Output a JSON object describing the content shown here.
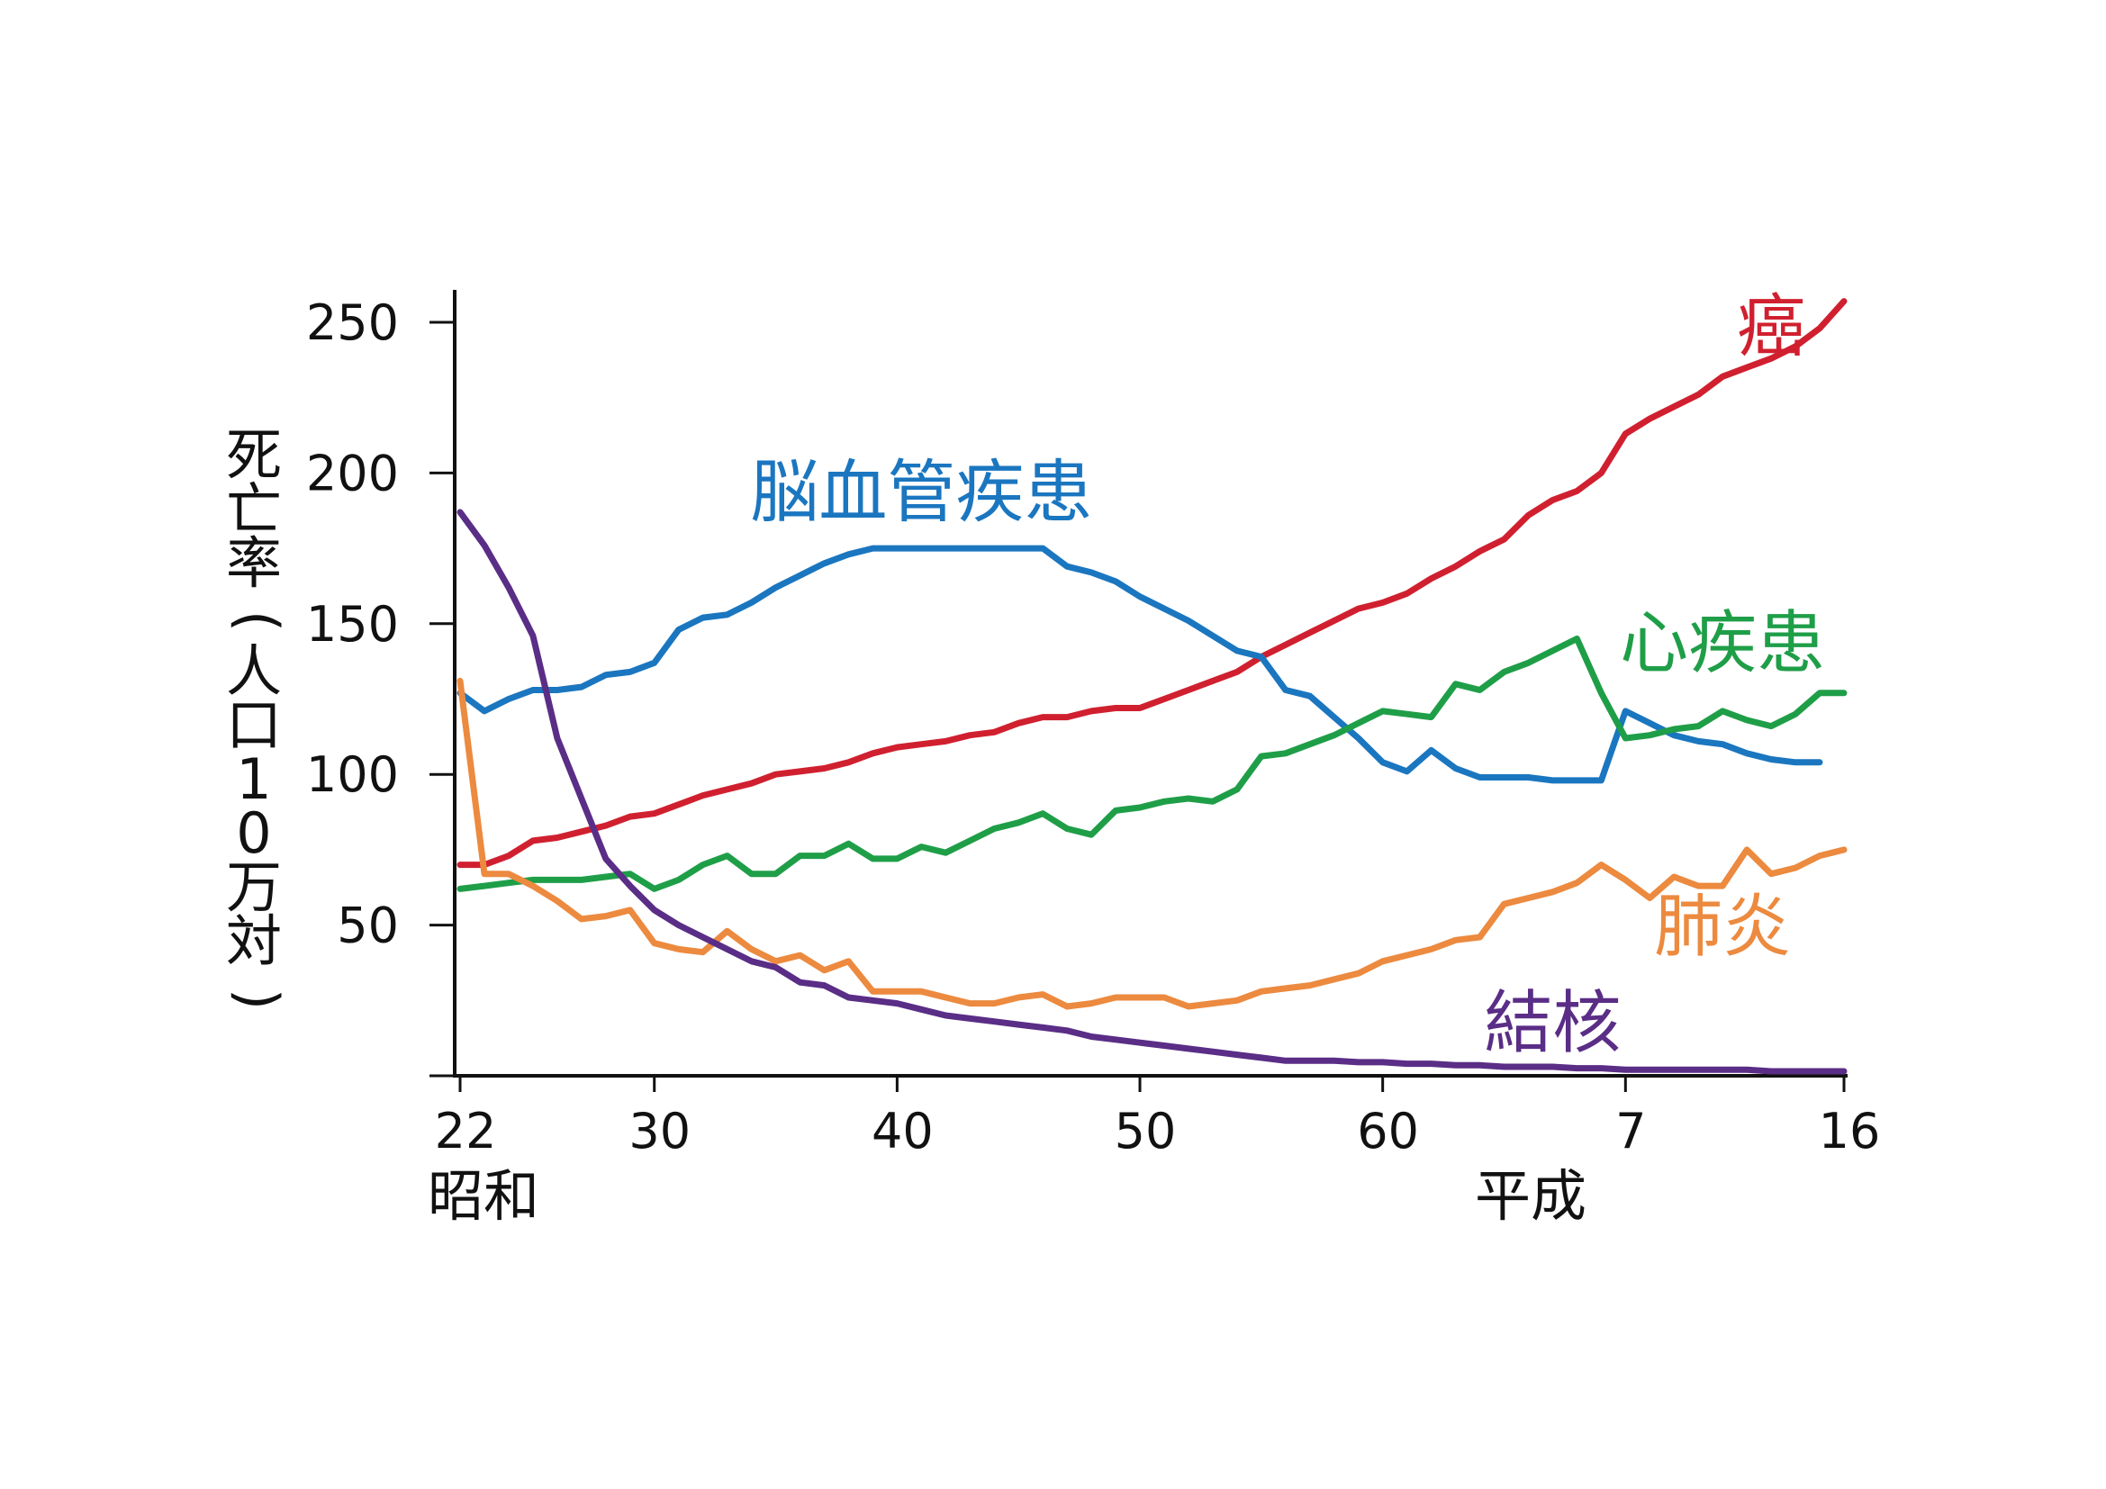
{
  "chart_data": {
    "type": "line",
    "ylabel": "死亡率（人口10万対）",
    "ylim": [
      0,
      260
    ],
    "yticks": [
      50,
      100,
      150,
      200,
      250
    ],
    "xlim": [
      1947,
      2004
    ],
    "xticks": [
      {
        "x": 1947,
        "label": "22"
      },
      {
        "x": 1955,
        "label": "30"
      },
      {
        "x": 1965,
        "label": "40"
      },
      {
        "x": 1975,
        "label": "50"
      },
      {
        "x": 1985,
        "label": "60"
      },
      {
        "x": 1995,
        "label": "7"
      },
      {
        "x": 2004,
        "label": "16"
      }
    ],
    "era_labels": [
      {
        "x": 1947,
        "label": "昭和"
      },
      {
        "x": 1990,
        "label": "平成"
      }
    ],
    "series": [
      {
        "name": "癌",
        "color": "#d0202f",
        "points": [
          [
            1947,
            70
          ],
          [
            1948,
            70
          ],
          [
            1949,
            73
          ],
          [
            1950,
            78
          ],
          [
            1951,
            79
          ],
          [
            1952,
            81
          ],
          [
            1953,
            83
          ],
          [
            1954,
            86
          ],
          [
            1955,
            87
          ],
          [
            1956,
            90
          ],
          [
            1957,
            93
          ],
          [
            1958,
            95
          ],
          [
            1959,
            97
          ],
          [
            1960,
            100
          ],
          [
            1961,
            101
          ],
          [
            1962,
            102
          ],
          [
            1963,
            104
          ],
          [
            1964,
            107
          ],
          [
            1965,
            109
          ],
          [
            1966,
            110
          ],
          [
            1967,
            111
          ],
          [
            1968,
            113
          ],
          [
            1969,
            114
          ],
          [
            1970,
            117
          ],
          [
            1971,
            119
          ],
          [
            1972,
            119
          ],
          [
            1973,
            121
          ],
          [
            1974,
            122
          ],
          [
            1975,
            122
          ],
          [
            1976,
            125
          ],
          [
            1977,
            128
          ],
          [
            1978,
            131
          ],
          [
            1979,
            134
          ],
          [
            1980,
            139
          ],
          [
            1981,
            143
          ],
          [
            1982,
            147
          ],
          [
            1983,
            151
          ],
          [
            1984,
            155
          ],
          [
            1985,
            157
          ],
          [
            1986,
            160
          ],
          [
            1987,
            165
          ],
          [
            1988,
            169
          ],
          [
            1989,
            174
          ],
          [
            1990,
            178
          ],
          [
            1991,
            186
          ],
          [
            1992,
            191
          ],
          [
            1993,
            194
          ],
          [
            1994,
            200
          ],
          [
            1995,
            213
          ],
          [
            1996,
            218
          ],
          [
            1997,
            222
          ],
          [
            1998,
            226
          ],
          [
            1999,
            232
          ],
          [
            2000,
            235
          ],
          [
            2001,
            238
          ],
          [
            2002,
            242
          ],
          [
            2003,
            248
          ],
          [
            2004,
            257
          ]
        ],
        "label_pos": [
          2001,
          247
        ]
      },
      {
        "name": "脳血管疾患",
        "color": "#1b76c0",
        "points": [
          [
            1947,
            127
          ],
          [
            1948,
            121
          ],
          [
            1949,
            125
          ],
          [
            1950,
            128
          ],
          [
            1951,
            128
          ],
          [
            1952,
            129
          ],
          [
            1953,
            133
          ],
          [
            1954,
            134
          ],
          [
            1955,
            137
          ],
          [
            1956,
            148
          ],
          [
            1957,
            152
          ],
          [
            1958,
            153
          ],
          [
            1959,
            157
          ],
          [
            1960,
            162
          ],
          [
            1961,
            166
          ],
          [
            1962,
            170
          ],
          [
            1963,
            173
          ],
          [
            1964,
            175
          ],
          [
            1965,
            175
          ],
          [
            1966,
            175
          ],
          [
            1967,
            175
          ],
          [
            1968,
            175
          ],
          [
            1969,
            175
          ],
          [
            1970,
            175
          ],
          [
            1971,
            175
          ],
          [
            1972,
            169
          ],
          [
            1973,
            167
          ],
          [
            1974,
            164
          ],
          [
            1975,
            159
          ],
          [
            1976,
            155
          ],
          [
            1977,
            151
          ],
          [
            1978,
            146
          ],
          [
            1979,
            141
          ],
          [
            1980,
            139
          ],
          [
            1981,
            128
          ],
          [
            1982,
            126
          ],
          [
            1983,
            119
          ],
          [
            1984,
            112
          ],
          [
            1985,
            104
          ],
          [
            1986,
            101
          ],
          [
            1987,
            108
          ],
          [
            1988,
            102
          ],
          [
            1989,
            99
          ],
          [
            1990,
            99
          ],
          [
            1991,
            99
          ],
          [
            1992,
            98
          ],
          [
            1993,
            98
          ],
          [
            1994,
            98
          ],
          [
            1995,
            121
          ],
          [
            1996,
            117
          ],
          [
            1997,
            113
          ],
          [
            1998,
            111
          ],
          [
            1999,
            110
          ],
          [
            2000,
            107
          ],
          [
            2001,
            105
          ],
          [
            2002,
            104
          ],
          [
            2003,
            104
          ]
        ],
        "label_pos": [
          1966,
          192
        ]
      },
      {
        "name": "心疾患",
        "color": "#1f9e48",
        "points": [
          [
            1947,
            62
          ],
          [
            1948,
            63
          ],
          [
            1949,
            64
          ],
          [
            1950,
            65
          ],
          [
            1951,
            65
          ],
          [
            1952,
            65
          ],
          [
            1953,
            66
          ],
          [
            1954,
            67
          ],
          [
            1955,
            62
          ],
          [
            1956,
            65
          ],
          [
            1957,
            70
          ],
          [
            1958,
            73
          ],
          [
            1959,
            67
          ],
          [
            1960,
            67
          ],
          [
            1961,
            73
          ],
          [
            1962,
            73
          ],
          [
            1963,
            77
          ],
          [
            1964,
            72
          ],
          [
            1965,
            72
          ],
          [
            1966,
            76
          ],
          [
            1967,
            74
          ],
          [
            1968,
            78
          ],
          [
            1969,
            82
          ],
          [
            1970,
            84
          ],
          [
            1971,
            87
          ],
          [
            1972,
            82
          ],
          [
            1973,
            80
          ],
          [
            1974,
            88
          ],
          [
            1975,
            89
          ],
          [
            1976,
            91
          ],
          [
            1977,
            92
          ],
          [
            1978,
            91
          ],
          [
            1979,
            95
          ],
          [
            1980,
            106
          ],
          [
            1981,
            107
          ],
          [
            1982,
            110
          ],
          [
            1983,
            113
          ],
          [
            1984,
            117
          ],
          [
            1985,
            121
          ],
          [
            1986,
            120
          ],
          [
            1987,
            119
          ],
          [
            1988,
            130
          ],
          [
            1989,
            128
          ],
          [
            1990,
            134
          ],
          [
            1991,
            137
          ],
          [
            1992,
            141
          ],
          [
            1993,
            145
          ],
          [
            1994,
            127
          ],
          [
            1995,
            112
          ],
          [
            1996,
            113
          ],
          [
            1997,
            115
          ],
          [
            1998,
            116
          ],
          [
            1999,
            121
          ],
          [
            2000,
            118
          ],
          [
            2001,
            116
          ],
          [
            2002,
            120
          ],
          [
            2003,
            127
          ],
          [
            2004,
            127
          ]
        ],
        "label_pos": [
          1999,
          142
        ]
      },
      {
        "name": "肺炎",
        "color": "#ec8a3f",
        "points": [
          [
            1947,
            131
          ],
          [
            1948,
            67
          ],
          [
            1949,
            67
          ],
          [
            1950,
            63
          ],
          [
            1951,
            58
          ],
          [
            1952,
            52
          ],
          [
            1953,
            53
          ],
          [
            1954,
            55
          ],
          [
            1955,
            44
          ],
          [
            1956,
            42
          ],
          [
            1957,
            41
          ],
          [
            1958,
            48
          ],
          [
            1959,
            42
          ],
          [
            1960,
            38
          ],
          [
            1961,
            40
          ],
          [
            1962,
            35
          ],
          [
            1963,
            38
          ],
          [
            1964,
            28
          ],
          [
            1965,
            28
          ],
          [
            1966,
            28
          ],
          [
            1967,
            26
          ],
          [
            1968,
            24
          ],
          [
            1969,
            24
          ],
          [
            1970,
            26
          ],
          [
            1971,
            27
          ],
          [
            1972,
            23
          ],
          [
            1973,
            24
          ],
          [
            1974,
            26
          ],
          [
            1975,
            26
          ],
          [
            1976,
            26
          ],
          [
            1977,
            23
          ],
          [
            1978,
            24
          ],
          [
            1979,
            25
          ],
          [
            1980,
            28
          ],
          [
            1981,
            29
          ],
          [
            1982,
            30
          ],
          [
            1983,
            32
          ],
          [
            1984,
            34
          ],
          [
            1985,
            38
          ],
          [
            1986,
            40
          ],
          [
            1987,
            42
          ],
          [
            1988,
            45
          ],
          [
            1989,
            46
          ],
          [
            1990,
            57
          ],
          [
            1991,
            59
          ],
          [
            1992,
            61
          ],
          [
            1993,
            64
          ],
          [
            1994,
            70
          ],
          [
            1995,
            65
          ],
          [
            1996,
            59
          ],
          [
            1997,
            66
          ],
          [
            1998,
            63
          ],
          [
            1999,
            63
          ],
          [
            2000,
            75
          ],
          [
            2001,
            67
          ],
          [
            2002,
            69
          ],
          [
            2003,
            73
          ],
          [
            2004,
            75
          ]
        ],
        "label_pos": [
          1999,
          48
        ]
      },
      {
        "name": "結核",
        "color": "#5a2d86",
        "points": [
          [
            1947,
            187
          ],
          [
            1948,
            176
          ],
          [
            1949,
            162
          ],
          [
            1950,
            146
          ],
          [
            1951,
            112
          ],
          [
            1952,
            92
          ],
          [
            1953,
            72
          ],
          [
            1954,
            63
          ],
          [
            1955,
            55
          ],
          [
            1956,
            50
          ],
          [
            1957,
            46
          ],
          [
            1958,
            42
          ],
          [
            1959,
            38
          ],
          [
            1960,
            36
          ],
          [
            1961,
            31
          ],
          [
            1962,
            30
          ],
          [
            1963,
            26
          ],
          [
            1964,
            25
          ],
          [
            1965,
            24
          ],
          [
            1966,
            22
          ],
          [
            1967,
            20
          ],
          [
            1968,
            19
          ],
          [
            1969,
            18
          ],
          [
            1970,
            17
          ],
          [
            1971,
            16
          ],
          [
            1972,
            15
          ],
          [
            1973,
            13
          ],
          [
            1974,
            12
          ],
          [
            1975,
            11
          ],
          [
            1976,
            10
          ],
          [
            1977,
            9
          ],
          [
            1978,
            8
          ],
          [
            1979,
            7
          ],
          [
            1980,
            6
          ],
          [
            1981,
            5
          ],
          [
            1982,
            5
          ],
          [
            1983,
            5
          ],
          [
            1984,
            4.5
          ],
          [
            1985,
            4.5
          ],
          [
            1986,
            4
          ],
          [
            1987,
            4
          ],
          [
            1988,
            3.5
          ],
          [
            1989,
            3.5
          ],
          [
            1990,
            3
          ],
          [
            1991,
            3
          ],
          [
            1992,
            3
          ],
          [
            1993,
            2.5
          ],
          [
            1994,
            2.5
          ],
          [
            1995,
            2
          ],
          [
            1996,
            2
          ],
          [
            1997,
            2
          ],
          [
            1998,
            2
          ],
          [
            1999,
            2
          ],
          [
            2000,
            2
          ],
          [
            2001,
            1.5
          ],
          [
            2002,
            1.5
          ],
          [
            2003,
            1.5
          ],
          [
            2004,
            1.5
          ]
        ],
        "label_pos": [
          1992,
          16
        ]
      }
    ]
  }
}
